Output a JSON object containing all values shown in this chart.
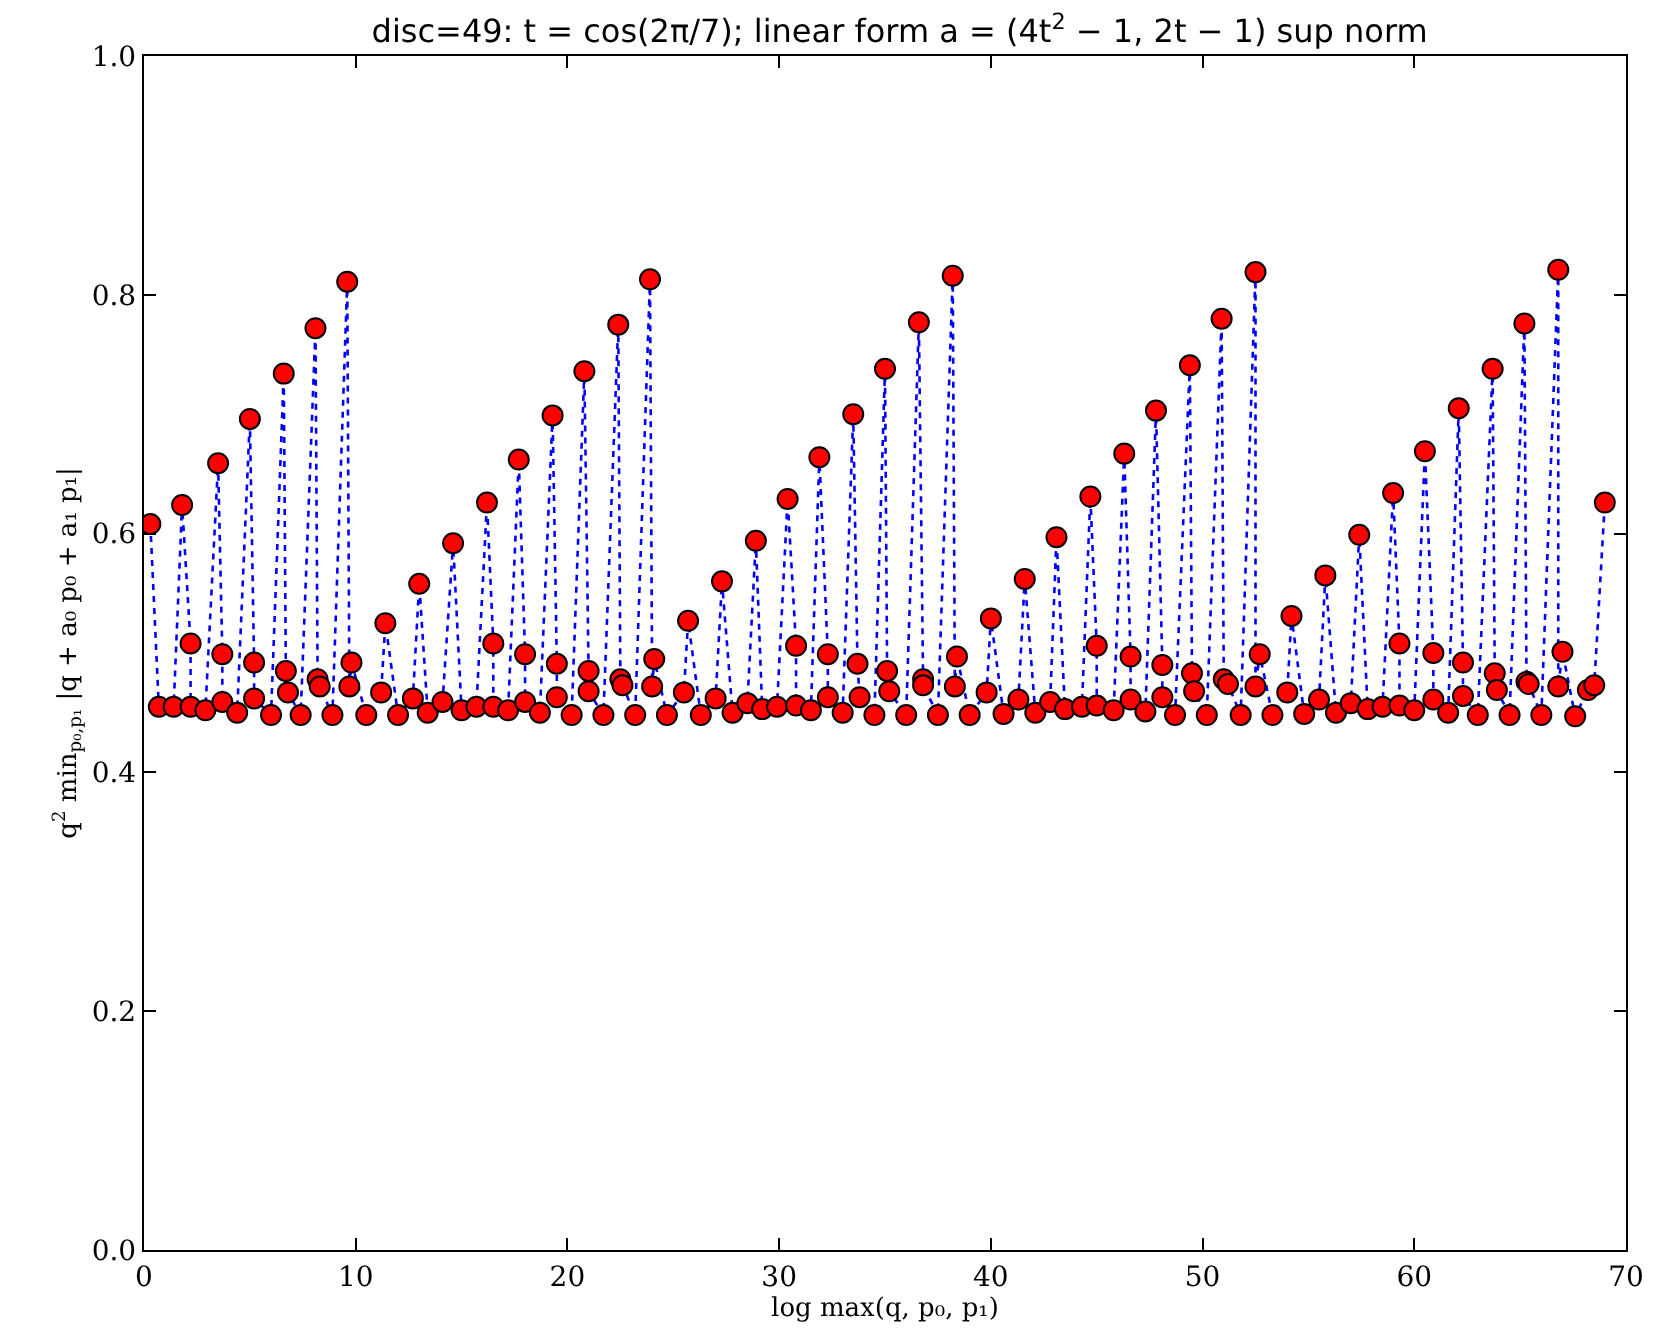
{
  "chart_data": {
    "type": "line",
    "title": "disc=49: t = cos(2π/7); linear form a = (4t$^{2}$ − 1, 2t − 1) sup norm",
    "xlabel": "log max(q, p₀, p₁)",
    "ylabel": "q$^{2}$ min$_{p₀,p₁}$ |q + a₀ p₀ + a₁ p₁|",
    "x": [
      0.3,
      0.7,
      1.4,
      1.8,
      2.2,
      2.2,
      2.9,
      3.5,
      3.7,
      3.7,
      4.4,
      5.0,
      5.2,
      5.2,
      6.0,
      6.6,
      6.7,
      6.8,
      7.4,
      8.1,
      8.2,
      8.3,
      8.9,
      9.6,
      9.7,
      9.8,
      10.5,
      11.2,
      11.4,
      12.0,
      12.7,
      13.0,
      13.4,
      14.1,
      14.6,
      15.0,
      15.7,
      16.2,
      16.5,
      16.5,
      17.2,
      17.7,
      18.0,
      18.0,
      18.7,
      19.3,
      19.5,
      19.5,
      20.2,
      20.8,
      21.0,
      21.0,
      21.7,
      22.4,
      22.5,
      22.6,
      23.2,
      23.9,
      24.0,
      24.1,
      24.7,
      25.5,
      25.7,
      26.3,
      27.0,
      27.3,
      27.8,
      28.5,
      28.9,
      29.2,
      29.9,
      30.4,
      30.8,
      30.8,
      31.5,
      31.9,
      32.3,
      32.3,
      33.0,
      33.5,
      33.7,
      33.8,
      34.5,
      35.0,
      35.1,
      35.2,
      36.0,
      36.6,
      36.8,
      36.8,
      37.5,
      38.2,
      38.3,
      38.4,
      39.0,
      39.8,
      40.0,
      40.6,
      41.3,
      41.6,
      42.1,
      42.8,
      43.1,
      43.5,
      44.3,
      44.7,
      45.0,
      45.0,
      45.8,
      46.3,
      46.6,
      46.6,
      47.3,
      47.8,
      48.1,
      48.1,
      48.7,
      49.4,
      49.5,
      49.6,
      50.2,
      50.9,
      51.0,
      51.2,
      51.8,
      52.5,
      52.5,
      52.7,
      53.3,
      54.0,
      54.2,
      54.8,
      55.5,
      55.8,
      56.3,
      57.0,
      57.4,
      57.8,
      58.5,
      59.0,
      59.3,
      59.3,
      60.0,
      60.5,
      60.9,
      60.9,
      61.6,
      62.1,
      62.3,
      62.3,
      63.0,
      63.7,
      63.8,
      63.9,
      64.5,
      65.2,
      65.3,
      65.4,
      66.0,
      66.8,
      66.8,
      67.0,
      67.6,
      68.2,
      68.5,
      69.0
    ],
    "series": [
      {
        "color": "#0000ff",
        "marker": "none",
        "line_style": "dotted",
        "values": [
          0.608,
          0.455,
          0.455,
          0.624,
          0.508,
          0.455,
          0.452,
          0.659,
          0.499,
          0.459,
          0.45,
          0.696,
          0.492,
          0.462,
          0.448,
          0.734,
          0.485,
          0.467,
          0.448,
          0.772,
          0.478,
          0.472,
          0.448,
          0.811,
          0.472,
          0.492,
          0.448,
          0.467,
          0.525,
          0.448,
          0.462,
          0.558,
          0.45,
          0.459,
          0.592,
          0.452,
          0.455,
          0.626,
          0.508,
          0.455,
          0.452,
          0.662,
          0.499,
          0.459,
          0.45,
          0.699,
          0.491,
          0.463,
          0.448,
          0.736,
          0.485,
          0.468,
          0.448,
          0.775,
          0.478,
          0.473,
          0.448,
          0.813,
          0.472,
          0.495,
          0.448,
          0.467,
          0.527,
          0.448,
          0.462,
          0.56,
          0.45,
          0.458,
          0.594,
          0.453,
          0.455,
          0.629,
          0.506,
          0.456,
          0.452,
          0.664,
          0.499,
          0.463,
          0.45,
          0.7,
          0.491,
          0.463,
          0.448,
          0.738,
          0.485,
          0.468,
          0.448,
          0.777,
          0.478,
          0.473,
          0.448,
          0.816,
          0.472,
          0.497,
          0.448,
          0.467,
          0.529,
          0.449,
          0.461,
          0.562,
          0.45,
          0.459,
          0.597,
          0.453,
          0.455,
          0.631,
          0.506,
          0.456,
          0.452,
          0.667,
          0.497,
          0.461,
          0.451,
          0.703,
          0.49,
          0.463,
          0.448,
          0.741,
          0.483,
          0.468,
          0.448,
          0.78,
          0.478,
          0.474,
          0.448,
          0.819,
          0.472,
          0.499,
          0.448,
          0.467,
          0.531,
          0.449,
          0.461,
          0.565,
          0.45,
          0.458,
          0.599,
          0.453,
          0.455,
          0.634,
          0.508,
          0.456,
          0.452,
          0.669,
          0.5,
          0.461,
          0.45,
          0.705,
          0.492,
          0.464,
          0.448,
          0.738,
          0.483,
          0.469,
          0.448,
          0.776,
          0.476,
          0.474,
          0.448,
          0.821,
          0.472,
          0.501,
          0.447,
          0.469,
          0.473,
          0.626
        ]
      },
      {
        "type": "scatter",
        "color": "#ff0000",
        "marker": "circle",
        "values": [
          0.608,
          0.455,
          0.455,
          0.624,
          0.508,
          0.455,
          0.452,
          0.659,
          0.499,
          0.459,
          0.45,
          0.696,
          0.492,
          0.462,
          0.448,
          0.734,
          0.485,
          0.467,
          0.448,
          0.772,
          0.478,
          0.472,
          0.448,
          0.811,
          0.472,
          0.492,
          0.448,
          0.467,
          0.525,
          0.448,
          0.462,
          0.558,
          0.45,
          0.459,
          0.592,
          0.452,
          0.455,
          0.626,
          0.508,
          0.455,
          0.452,
          0.662,
          0.499,
          0.459,
          0.45,
          0.699,
          0.491,
          0.463,
          0.448,
          0.736,
          0.485,
          0.468,
          0.448,
          0.775,
          0.478,
          0.473,
          0.448,
          0.813,
          0.472,
          0.495,
          0.448,
          0.467,
          0.527,
          0.448,
          0.462,
          0.56,
          0.45,
          0.458,
          0.594,
          0.453,
          0.455,
          0.629,
          0.506,
          0.456,
          0.452,
          0.664,
          0.499,
          0.463,
          0.45,
          0.7,
          0.491,
          0.463,
          0.448,
          0.738,
          0.485,
          0.468,
          0.448,
          0.777,
          0.478,
          0.473,
          0.448,
          0.816,
          0.472,
          0.497,
          0.448,
          0.467,
          0.529,
          0.449,
          0.461,
          0.562,
          0.45,
          0.459,
          0.597,
          0.453,
          0.455,
          0.631,
          0.506,
          0.456,
          0.452,
          0.667,
          0.497,
          0.461,
          0.451,
          0.703,
          0.49,
          0.463,
          0.448,
          0.741,
          0.483,
          0.468,
          0.448,
          0.78,
          0.478,
          0.474,
          0.448,
          0.819,
          0.472,
          0.499,
          0.448,
          0.467,
          0.531,
          0.449,
          0.461,
          0.565,
          0.45,
          0.458,
          0.599,
          0.453,
          0.455,
          0.634,
          0.508,
          0.456,
          0.452,
          0.669,
          0.5,
          0.461,
          0.45,
          0.705,
          0.492,
          0.464,
          0.448,
          0.738,
          0.483,
          0.469,
          0.448,
          0.776,
          0.476,
          0.474,
          0.448,
          0.821,
          0.472,
          0.501,
          0.447,
          0.469,
          0.473,
          0.626
        ]
      }
    ],
    "xlim": [
      0,
      70
    ],
    "xticks": [
      0,
      10,
      20,
      30,
      40,
      50,
      60,
      70
    ],
    "ylim": [
      0,
      1
    ],
    "yticks": [
      {
        "value": 0,
        "label": "0.0"
      },
      0.2,
      0.4,
      0.6,
      0.8,
      {
        "value": 1,
        "label": "1.0"
      }
    ]
  }
}
